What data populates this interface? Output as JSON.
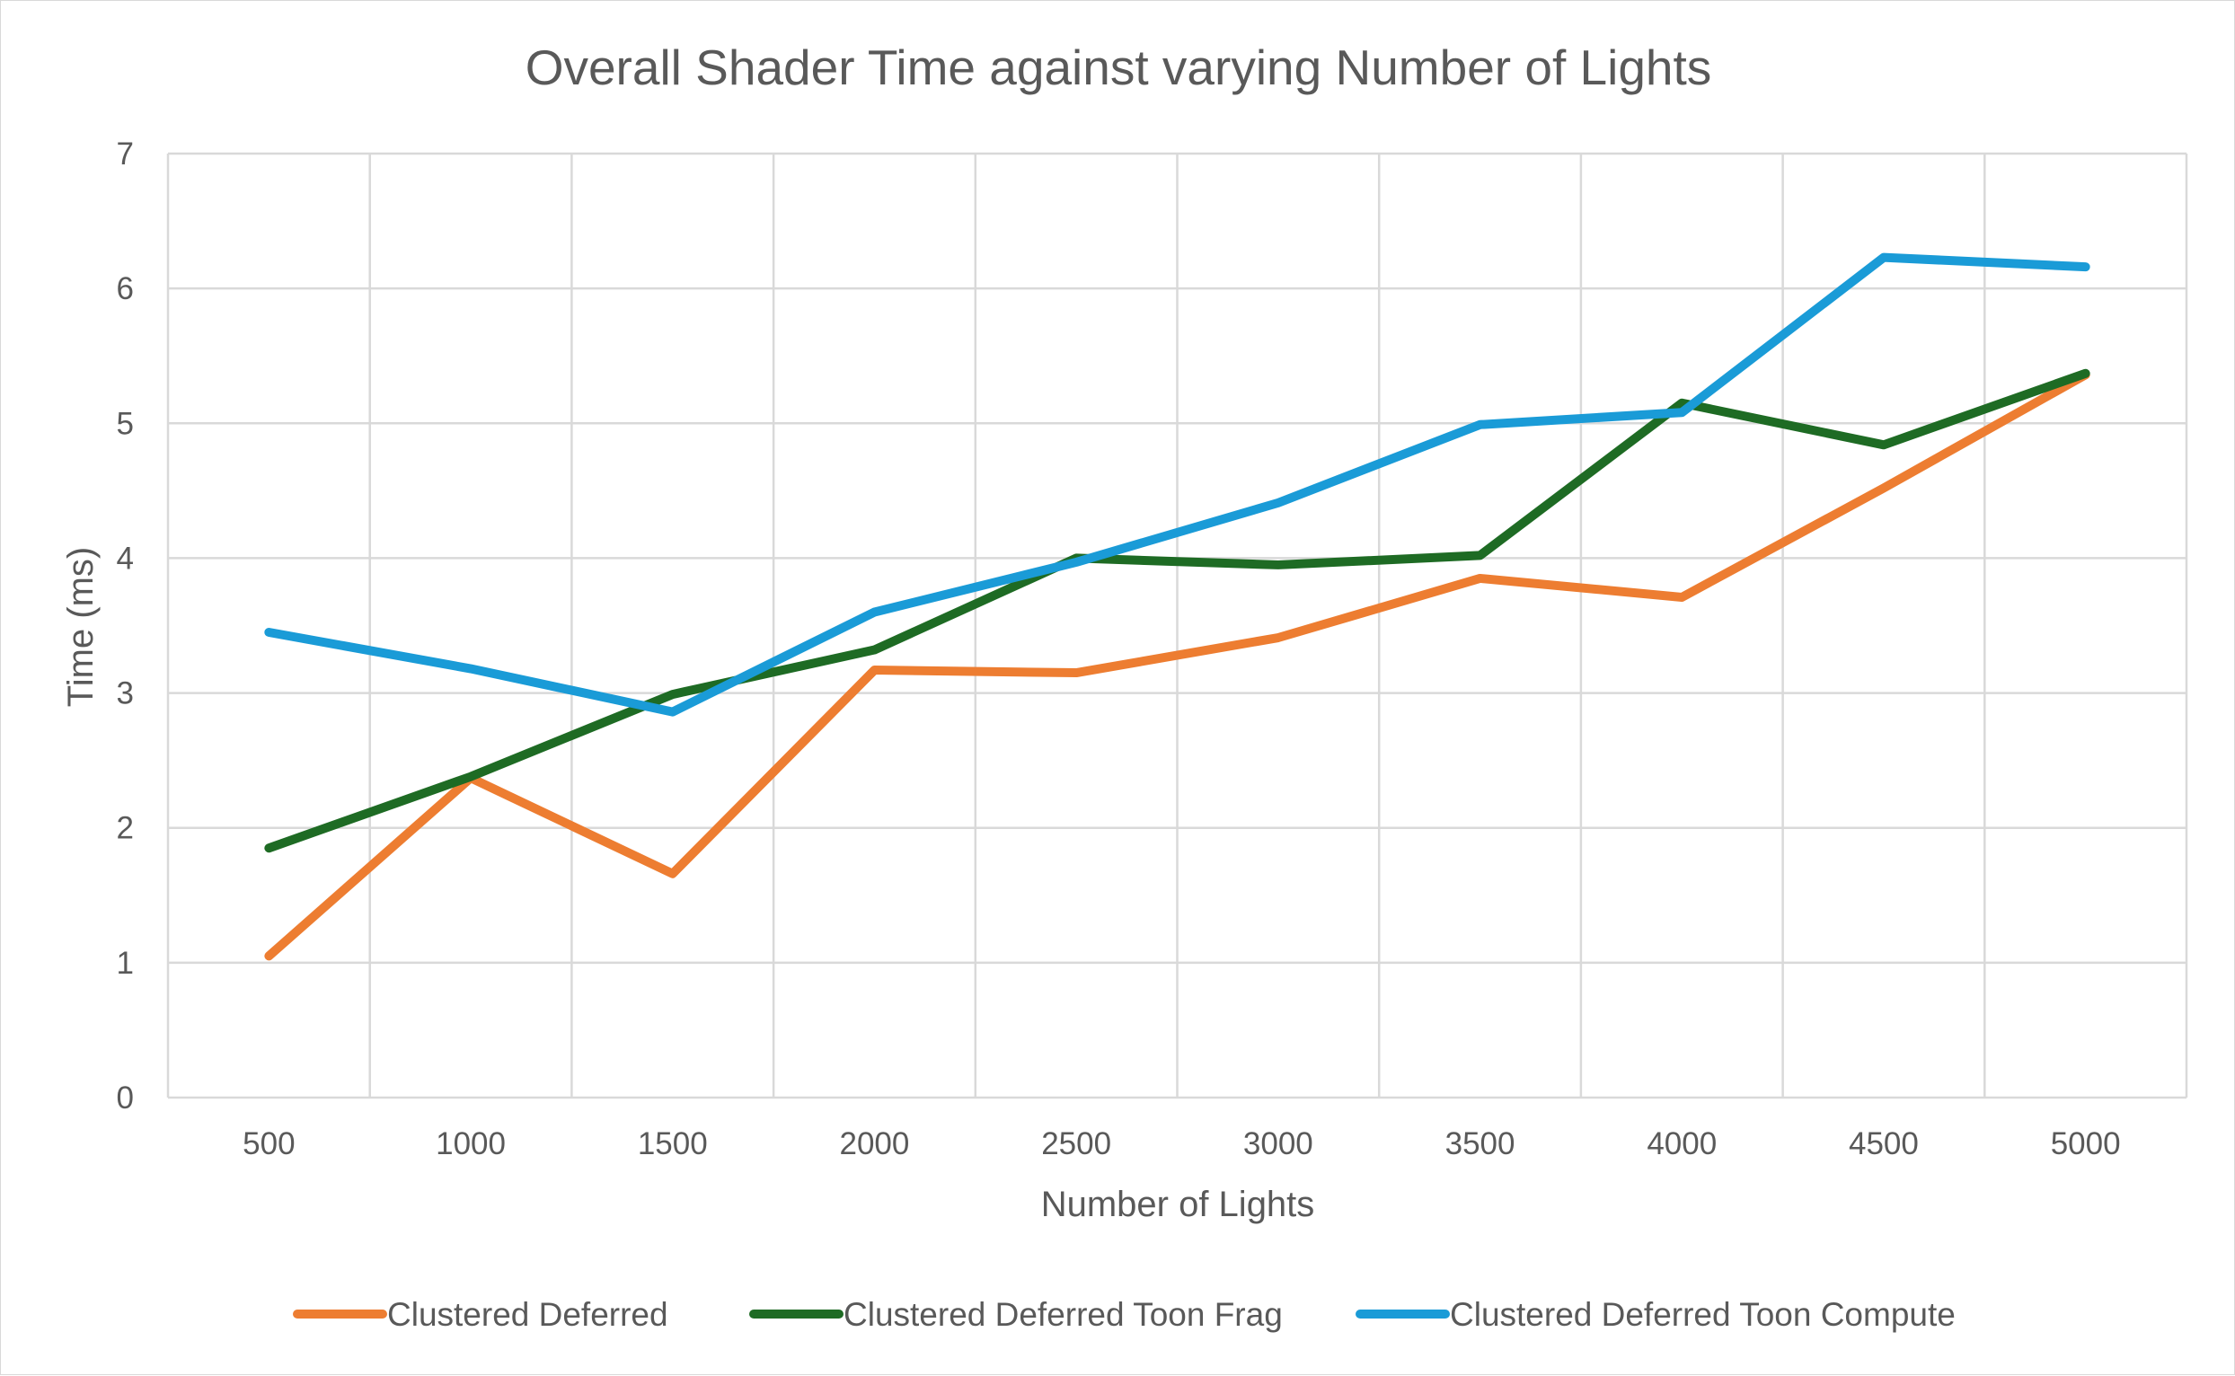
{
  "chart_data": {
    "type": "line",
    "title": "Overall Shader Time against varying Number of Lights",
    "xlabel": "Number of Lights",
    "ylabel": "Time (ms)",
    "categories": [
      "500",
      "1000",
      "1500",
      "2000",
      "2500",
      "3000",
      "3500",
      "4000",
      "4500",
      "5000"
    ],
    "ylim": [
      0,
      7
    ],
    "yticks": [
      "0",
      "1",
      "2",
      "3",
      "4",
      "5",
      "6",
      "7"
    ],
    "grid": true,
    "legend_position": "bottom",
    "series": [
      {
        "name": "Clustered Deferred",
        "color": "#ED7D31",
        "values": [
          1.05,
          2.37,
          1.66,
          3.17,
          3.15,
          3.41,
          3.85,
          3.71,
          4.52,
          5.36
        ]
      },
      {
        "name": "Clustered Deferred Toon Frag",
        "color": "#1E6B24",
        "values": [
          1.85,
          2.38,
          2.99,
          3.32,
          4.0,
          3.95,
          4.02,
          5.15,
          4.84,
          5.37
        ]
      },
      {
        "name": "Clustered Deferred Toon Compute",
        "color": "#1A9BD7",
        "values": [
          3.45,
          3.18,
          2.86,
          3.6,
          3.97,
          4.41,
          4.99,
          5.08,
          6.23,
          6.16
        ]
      }
    ]
  }
}
